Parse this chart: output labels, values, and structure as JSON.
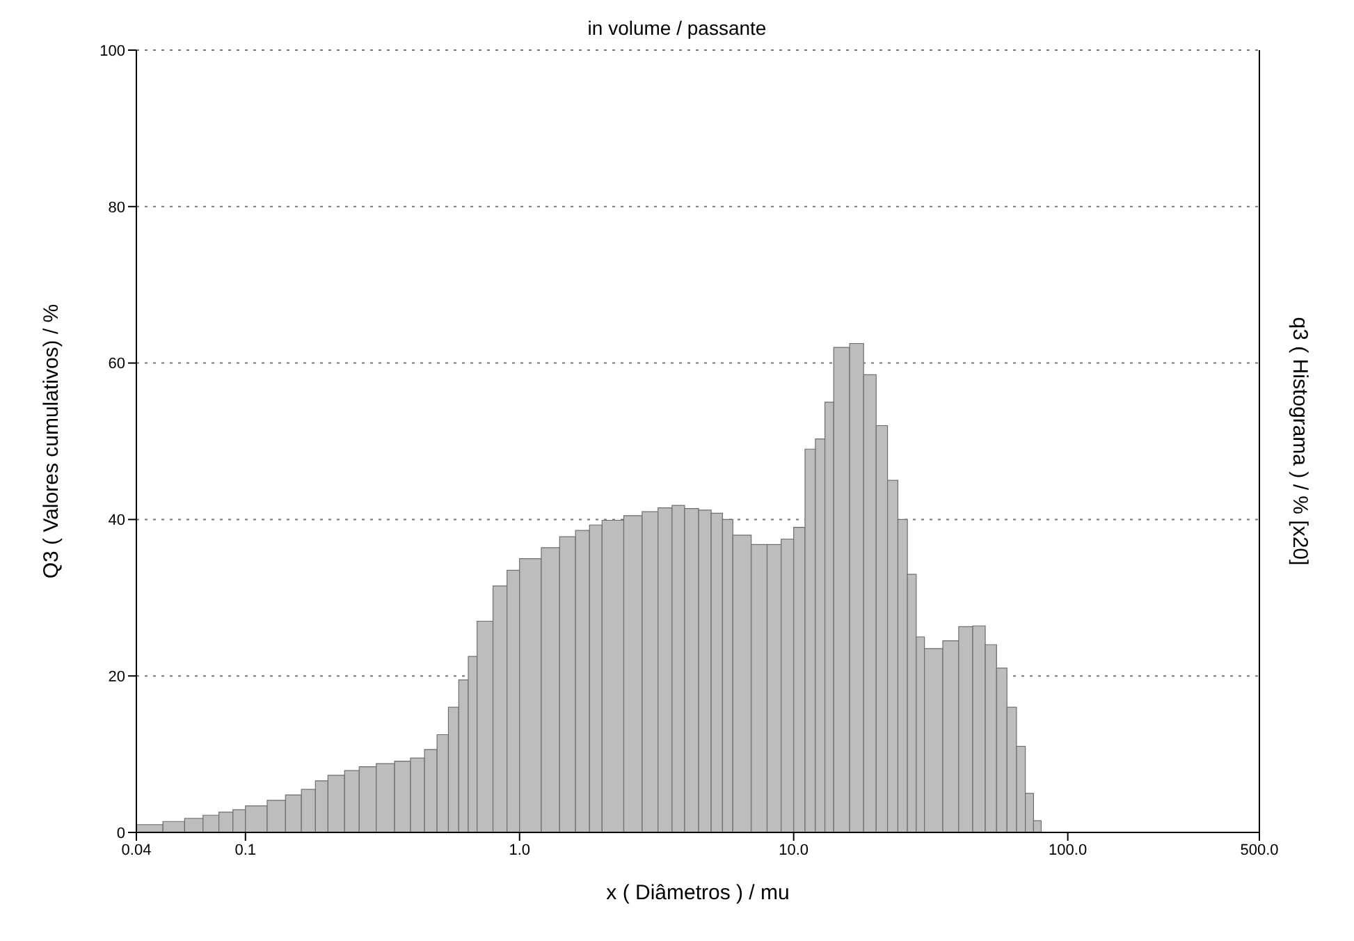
{
  "chart_data": {
    "type": "histogram",
    "title": "in volume / passante",
    "xlabel": "x ( Diâmetros ) / mu",
    "ylabel": "Q3 ( Valores cumulativos) / %",
    "y2label": "q3 ( Histograma ) / % [x20]",
    "log": "x",
    "color": "#bdbdbd",
    "grid": "y",
    "bins": [
      0.04,
      0.05,
      0.06,
      0.07,
      0.08,
      0.09,
      0.1,
      0.12,
      0.14,
      0.16,
      0.18,
      0.2,
      0.23,
      0.26,
      0.3,
      0.35,
      0.4,
      0.45,
      0.5,
      0.55,
      0.6,
      0.65,
      0.7,
      0.8,
      0.9,
      1.0,
      1.2,
      1.4,
      1.6,
      1.8,
      2.0,
      2.4,
      2.8,
      3.2,
      3.6,
      4.0,
      4.5,
      5,
      5.5,
      6,
      7,
      8,
      9,
      10,
      11,
      12,
      13,
      14,
      16,
      18,
      20,
      22,
      24,
      26,
      28,
      30,
      35,
      40,
      45,
      50,
      55,
      60,
      65,
      70,
      75,
      80
    ],
    "values": [
      1,
      1.4,
      1.8,
      2.2,
      2.6,
      2.9,
      3.4,
      4.1,
      4.8,
      5.5,
      6.6,
      7.3,
      7.9,
      8.4,
      8.8,
      9.1,
      9.5,
      10.6,
      12.5,
      16,
      19.5,
      22.5,
      27,
      31.5,
      33.5,
      35,
      36.4,
      37.8,
      38.6,
      39.3,
      39.9,
      40.5,
      41,
      41.5,
      41.8,
      41.4,
      41.2,
      40.8,
      40,
      38,
      36.8,
      36.8,
      37.5,
      39,
      49,
      50.3,
      55,
      62,
      62.5,
      58.5,
      52,
      45,
      40,
      33,
      25,
      23.5,
      24.5,
      26.3,
      26.4,
      24,
      21,
      16,
      11,
      5,
      1.5
    ],
    "xlim": [
      0.04,
      500
    ],
    "xticks": [
      0.04,
      0.1,
      {
        "value": 1,
        "label": "1.0"
      },
      {
        "value": 10,
        "label": "10.0"
      },
      {
        "value": 100,
        "label": "100.0"
      },
      {
        "value": 500,
        "label": "500.0"
      }
    ],
    "ylim": [
      0,
      100
    ],
    "yticks": [
      0,
      20,
      40,
      60,
      80,
      100
    ]
  }
}
